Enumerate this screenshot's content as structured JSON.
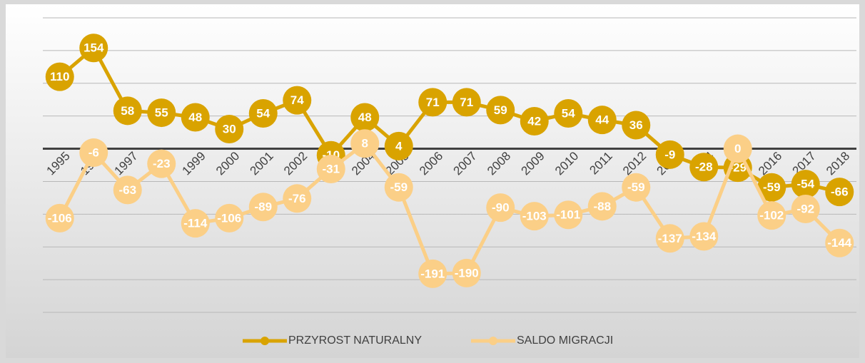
{
  "chart_data": {
    "type": "line",
    "categories": [
      "1995",
      "1996",
      "1997",
      "1998",
      "1999",
      "2000",
      "2001",
      "2002",
      "2003",
      "2004",
      "2005",
      "2006",
      "2007",
      "2008",
      "2009",
      "2010",
      "2011",
      "2012",
      "2013",
      "2014",
      "2015",
      "2016",
      "2017",
      "2018"
    ],
    "series": [
      {
        "name": "PRZYROST NATURALNY",
        "color": "#d9a300",
        "values": [
          110,
          154,
          58,
          55,
          48,
          30,
          54,
          74,
          -10,
          48,
          4,
          71,
          71,
          59,
          42,
          54,
          44,
          36,
          -9,
          -28,
          -29,
          -59,
          -54,
          -66
        ]
      },
      {
        "name": "SALDO MIGRACJI",
        "color": "#fbcf87",
        "values": [
          -106,
          -6,
          -63,
          -23,
          -114,
          -106,
          -89,
          -76,
          -31,
          8,
          -59,
          -191,
          -190,
          -90,
          -103,
          -101,
          -88,
          -59,
          -137,
          -134,
          0,
          -102,
          -92,
          -144
        ]
      }
    ],
    "ylim": [
      -250,
      200
    ],
    "yticks": [
      -250,
      -200,
      -150,
      -100,
      -50,
      0,
      50,
      100,
      150,
      200
    ],
    "grid": true,
    "legend": "bottom"
  }
}
